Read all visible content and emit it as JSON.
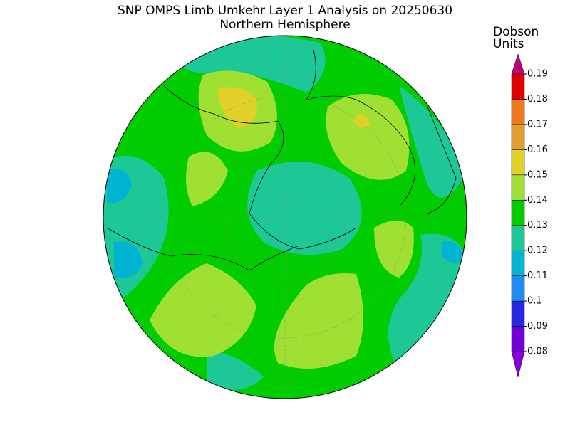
{
  "map": {
    "title": "SNP OMPS Limb Umkehr Layer 1 Analysis on 20250630",
    "subtitle": "Northern Hemisphere",
    "colorbar": {
      "label_lines": [
        "Dobson",
        "Units"
      ],
      "levels": [
        0.08,
        0.09,
        0.1,
        0.11,
        0.12,
        0.13,
        0.14,
        0.15,
        0.16,
        0.17,
        0.18,
        0.19
      ],
      "colors": [
        "#8a00d8",
        "#7000d8",
        "#2828e0",
        "#1e8cf0",
        "#00b4d2",
        "#1ec896",
        "#00cc00",
        "#a0e032",
        "#e0d028",
        "#e0a030",
        "#f07820",
        "#e00000",
        "#c0007c"
      ]
    }
  }
}
